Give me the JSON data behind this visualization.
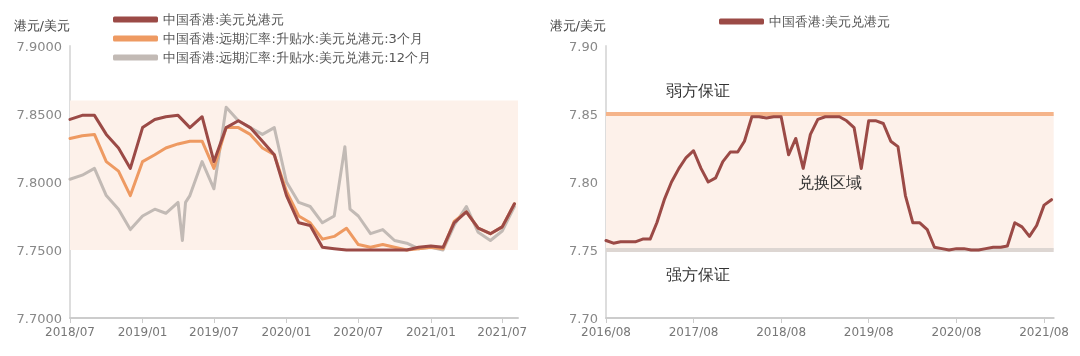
{
  "chart_data": [
    {
      "type": "line",
      "ylabel": "港元/美元",
      "legend": "top",
      "grid": false,
      "marker": "none",
      "line_style": "solid",
      "xlim": [
        "2018-07",
        "2021-08-10"
      ],
      "xticks": [
        {
          "value": "2018-07",
          "label": "2018/07"
        },
        {
          "value": "2019-01",
          "label": "2019/01"
        },
        {
          "value": "2019-07",
          "label": "2019/07"
        },
        {
          "value": "2020-01",
          "label": "2020/01"
        },
        {
          "value": "2020-07",
          "label": "2020/07"
        },
        {
          "value": "2021-01",
          "label": "2021/01"
        },
        {
          "value": "2021-07",
          "label": "2021/07"
        }
      ],
      "ylim": [
        7.7,
        7.9
      ],
      "yticks": [
        {
          "value": 7.7,
          "label": "7.7000"
        },
        {
          "value": 7.75,
          "label": "7.7500"
        },
        {
          "value": 7.8,
          "label": "7.8000"
        },
        {
          "value": 7.85,
          "label": "7.8500"
        },
        {
          "value": 7.9,
          "label": "7.9000"
        }
      ],
      "bands": [
        {
          "axis": "y",
          "from": 7.75,
          "to": 7.86,
          "color": "#fdf1ea"
        }
      ],
      "x": [
        "2018-07",
        "2018-08",
        "2018-09",
        "2018-10",
        "2018-11",
        "2018-12",
        "2019-01",
        "2019-02",
        "2019-03",
        "2019-04",
        "2019-05",
        "2019-06",
        "2019-07",
        "2019-08",
        "2019-09",
        "2019-10",
        "2019-11",
        "2019-12",
        "2020-01",
        "2020-02",
        "2020-03",
        "2020-04",
        "2020-05",
        "2020-06",
        "2020-07",
        "2020-08",
        "2020-09",
        "2020-10",
        "2020-11",
        "2020-12",
        "2021-01",
        "2021-02",
        "2021-03",
        "2021-04",
        "2021-05",
        "2021-06",
        "2021-07",
        "2021-08"
      ],
      "series": [
        {
          "name": "中国香港:美元兑港元",
          "color": "#9b4a46",
          "values": [
            7.846,
            7.849,
            7.849,
            7.835,
            7.825,
            7.81,
            7.84,
            7.846,
            7.848,
            7.849,
            7.84,
            7.848,
            7.815,
            7.84,
            7.845,
            7.84,
            7.83,
            7.82,
            7.79,
            7.77,
            7.768,
            7.752,
            7.751,
            7.75,
            7.75,
            7.75,
            7.75,
            7.75,
            7.75,
            7.752,
            7.753,
            7.752,
            7.77,
            7.778,
            7.766,
            7.762,
            7.767,
            7.784
          ]
        },
        {
          "name": "中国香港:远期汇率:升贴水:美元兑港元:3个月",
          "color": "#ee9a62",
          "values": [
            7.832,
            7.834,
            7.835,
            7.815,
            7.808,
            7.79,
            7.815,
            7.82,
            7.825,
            7.828,
            7.83,
            7.83,
            7.81,
            7.84,
            7.84,
            7.835,
            7.825,
            7.82,
            7.793,
            7.775,
            7.77,
            7.758,
            7.76,
            7.766,
            7.754,
            7.752,
            7.754,
            7.752,
            7.75,
            7.751,
            7.752,
            7.751,
            7.771,
            7.778,
            7.766,
            7.762,
            7.767,
            7.784
          ]
        },
        {
          "name": "中国香港:远期汇率:升贴水:美元兑港元:12个月",
          "color": "#c2bab5",
          "x": [
            "2018-07",
            "2018-08",
            "2018-09",
            "2018-10",
            "2018-11",
            "2018-12",
            "2019-01",
            "2019-02",
            "2019-03",
            "2019-04",
            "2019-04-12",
            "2019-04-20",
            "2019-05",
            "2019-06",
            "2019-07",
            "2019-08",
            "2019-09",
            "2019-10",
            "2019-11",
            "2019-12",
            "2020-01",
            "2020-02",
            "2020-03",
            "2020-04",
            "2020-05",
            "2020-05-28",
            "2020-06-10",
            "2020-07",
            "2020-08",
            "2020-09",
            "2020-10",
            "2020-11",
            "2020-12",
            "2021-01",
            "2021-02",
            "2021-03",
            "2021-04",
            "2021-05",
            "2021-06",
            "2021-07",
            "2021-08"
          ],
          "values": [
            7.802,
            7.805,
            7.81,
            7.79,
            7.78,
            7.765,
            7.775,
            7.78,
            7.777,
            7.785,
            7.757,
            7.785,
            7.79,
            7.815,
            7.795,
            7.855,
            7.845,
            7.84,
            7.835,
            7.84,
            7.8,
            7.785,
            7.782,
            7.77,
            7.775,
            7.826,
            7.78,
            7.775,
            7.762,
            7.765,
            7.757,
            7.755,
            7.751,
            7.752,
            7.75,
            7.768,
            7.782,
            7.763,
            7.757,
            7.764,
            7.782
          ]
        }
      ]
    },
    {
      "type": "line",
      "ylabel": "港元/美元",
      "legend": "top",
      "grid": false,
      "marker": "none",
      "line_style": "solid",
      "xlim": [
        "2016-08",
        "2021-09-10"
      ],
      "xticks": [
        {
          "value": "2016-08",
          "label": "2016/08"
        },
        {
          "value": "2017-08",
          "label": "2017/08"
        },
        {
          "value": "2018-08",
          "label": "2018/08"
        },
        {
          "value": "2019-08",
          "label": "2019/08"
        },
        {
          "value": "2020-08",
          "label": "2020/08"
        },
        {
          "value": "2021-08",
          "label": "2021/08"
        }
      ],
      "ylim": [
        7.7,
        7.9
      ],
      "yticks": [
        {
          "value": 7.7,
          "label": "7.70"
        },
        {
          "value": 7.75,
          "label": "7.75"
        },
        {
          "value": 7.8,
          "label": "7.80"
        },
        {
          "value": 7.85,
          "label": "7.85"
        },
        {
          "value": 7.9,
          "label": "7.90"
        }
      ],
      "bands": [
        {
          "axis": "y",
          "from": 7.75,
          "to": 7.85,
          "color": "#fdf1ea",
          "label": "兑换区域"
        }
      ],
      "ref_lines": [
        {
          "axis": "y",
          "value": 7.85,
          "label": "弱方保证",
          "color": "#f5b48a"
        },
        {
          "axis": "y",
          "value": 7.75,
          "label": "强方保证",
          "color": "#ddd6d2"
        }
      ],
      "x": [
        "2016-08",
        "2016-09",
        "2016-10",
        "2016-11",
        "2016-12",
        "2017-01",
        "2017-02",
        "2017-03",
        "2017-04",
        "2017-05",
        "2017-06",
        "2017-07",
        "2017-08",
        "2017-09",
        "2017-10",
        "2017-11",
        "2017-12",
        "2018-01",
        "2018-02",
        "2018-03",
        "2018-04",
        "2018-05",
        "2018-06",
        "2018-07",
        "2018-08",
        "2018-09",
        "2018-10",
        "2018-11",
        "2018-12",
        "2019-01",
        "2019-02",
        "2019-03",
        "2019-04",
        "2019-05",
        "2019-06",
        "2019-07",
        "2019-08",
        "2019-09",
        "2019-10",
        "2019-11",
        "2019-12",
        "2020-01",
        "2020-02",
        "2020-03",
        "2020-04",
        "2020-05",
        "2020-06",
        "2020-07",
        "2020-08",
        "2020-09",
        "2020-10",
        "2020-11",
        "2020-12",
        "2021-01",
        "2021-02",
        "2021-03",
        "2021-04",
        "2021-05",
        "2021-06",
        "2021-07",
        "2021-08",
        "2021-09"
      ],
      "series": [
        {
          "name": "中国香港:美元兑港元",
          "color": "#9b4a46",
          "values": [
            7.757,
            7.755,
            7.756,
            7.756,
            7.756,
            7.758,
            7.758,
            7.77,
            7.787,
            7.8,
            7.81,
            7.818,
            7.823,
            7.81,
            7.8,
            7.803,
            7.815,
            7.822,
            7.822,
            7.83,
            7.848,
            7.848,
            7.847,
            7.848,
            7.848,
            7.82,
            7.832,
            7.81,
            7.835,
            7.846,
            7.848,
            7.848,
            7.848,
            7.845,
            7.84,
            7.81,
            7.845,
            7.845,
            7.843,
            7.83,
            7.826,
            7.79,
            7.77,
            7.77,
            7.765,
            7.752,
            7.751,
            7.75,
            7.751,
            7.751,
            7.75,
            7.75,
            7.751,
            7.752,
            7.752,
            7.753,
            7.77,
            7.767,
            7.76,
            7.768,
            7.783,
            7.787
          ]
        }
      ]
    }
  ]
}
